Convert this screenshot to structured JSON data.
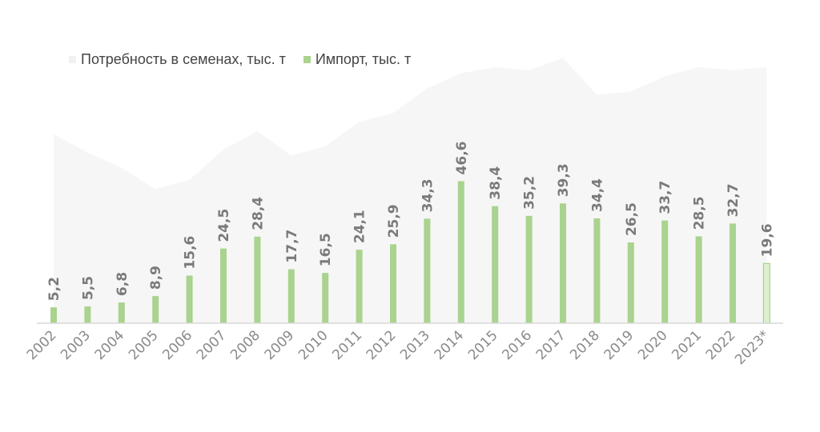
{
  "chart_data": {
    "type": "bar",
    "categories": [
      "2002",
      "2003",
      "2004",
      "2005",
      "2006",
      "2007",
      "2008",
      "2009",
      "2010",
      "2011",
      "2012",
      "2013",
      "2014",
      "2015",
      "2016",
      "2017",
      "2018",
      "2019",
      "2020",
      "2021",
      "2022",
      "2023*"
    ],
    "series": [
      {
        "name": "Потребность в семенах, тыс. т",
        "type": "area",
        "values": [
          62,
          56,
          51,
          44,
          47,
          57,
          63,
          55,
          58,
          66,
          69,
          77,
          82,
          84,
          83,
          87,
          75,
          76,
          81,
          84,
          83,
          84
        ]
      },
      {
        "name": "Импорт, тыс. т",
        "type": "bar",
        "values": [
          5.2,
          5.5,
          6.8,
          8.9,
          15.6,
          24.5,
          28.4,
          17.7,
          16.5,
          24.1,
          25.9,
          34.3,
          46.6,
          38.4,
          35.2,
          39.3,
          34.4,
          26.5,
          33.7,
          28.5,
          32.7,
          19.6
        ],
        "labels": [
          "5,2",
          "5,5",
          "6,8",
          "8,9",
          "15,6",
          "24,5",
          "28,4",
          "17,7",
          "16,5",
          "24,1",
          "25,9",
          "34,3",
          "46,6",
          "38,4",
          "35,2",
          "39,3",
          "34,4",
          "26,5",
          "33,7",
          "28,5",
          "32,7",
          "19,6"
        ]
      }
    ],
    "ylim": [
      0,
      90
    ],
    "grid": false,
    "legend": "top-left",
    "colors": {
      "area": "#f6f6f6",
      "bar": "#a9d38e",
      "bar_highlight": "#dcefcf",
      "bar_highlight_stroke": "#a9d38e",
      "axis": "#d9d9d9"
    }
  },
  "legend": {
    "items": [
      {
        "label": "Потребность в семенах, тыс. т",
        "color": "#f3f3f3"
      },
      {
        "label": "Импорт, тыс. т",
        "color": "#a9d38e"
      }
    ]
  }
}
